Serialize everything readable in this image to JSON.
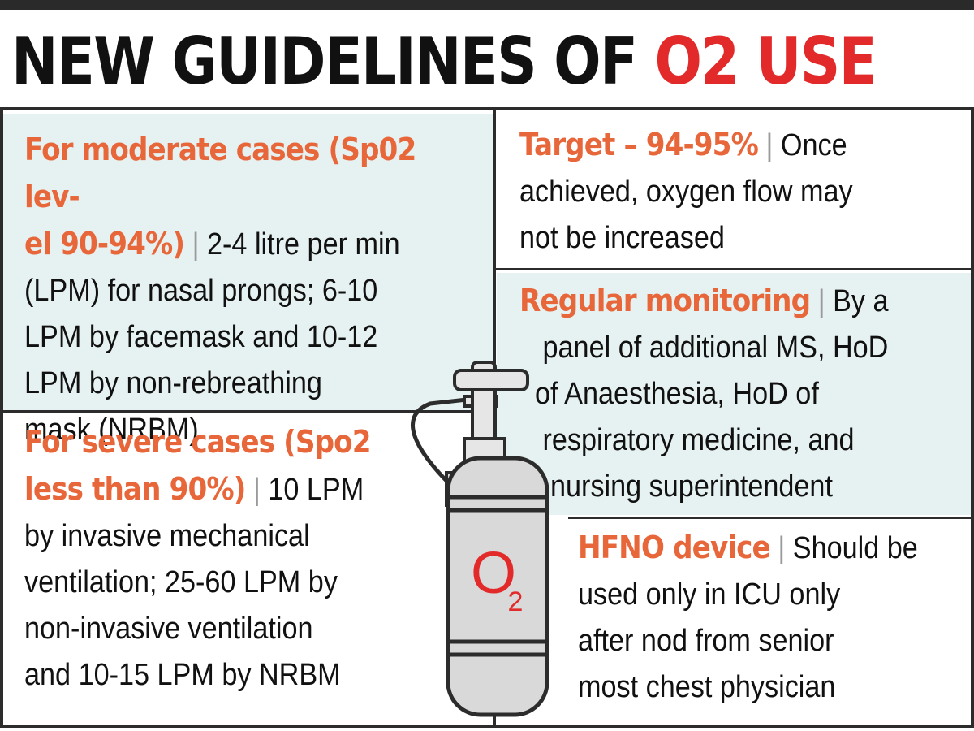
{
  "headline": {
    "part1": "NEW GUIDELINES OF ",
    "part2": "O2 USE"
  },
  "colors": {
    "accent_red": "#e32a2a",
    "label_orange": "#e8673a",
    "panel_tint": "#e6f2f1",
    "rule_dark": "#2c2c2c"
  },
  "separator": "|",
  "sections": {
    "moderate": {
      "label": "For moderate cases (Sp02 lev-\nel 90-94%)",
      "text": "2-4 litre per min\n(LPM) for nasal prongs; 6-10\nLPM by facemask and 10-12\nLPM by non-rebreathing\nmask (NRBM)"
    },
    "severe": {
      "label": "For severe cases (Spo2\nless than 90%)",
      "text": "10 LPM\nby invasive mechanical\nventilation; 25-60 LPM by\nnon-invasive ventilation\nand 10-15 LPM by NRBM"
    },
    "target": {
      "label": "Target – 94-95%",
      "text": "Once\nachieved, oxygen flow may\nnot be increased"
    },
    "monitoring": {
      "label": "Regular monitoring",
      "text": "By a\n   panel of additional MS, HoD\n  of Anaesthesia, HoD of\n   respiratory medicine, and\n    nursing superintendent"
    },
    "hfno": {
      "label": "HFNO device",
      "text": "Should be\nused only in ICU only\nafter nod from senior\nmost chest physician"
    }
  },
  "illustration": {
    "icon": "oxygen-cylinder-icon",
    "symbol": "O",
    "subscript": "2"
  }
}
